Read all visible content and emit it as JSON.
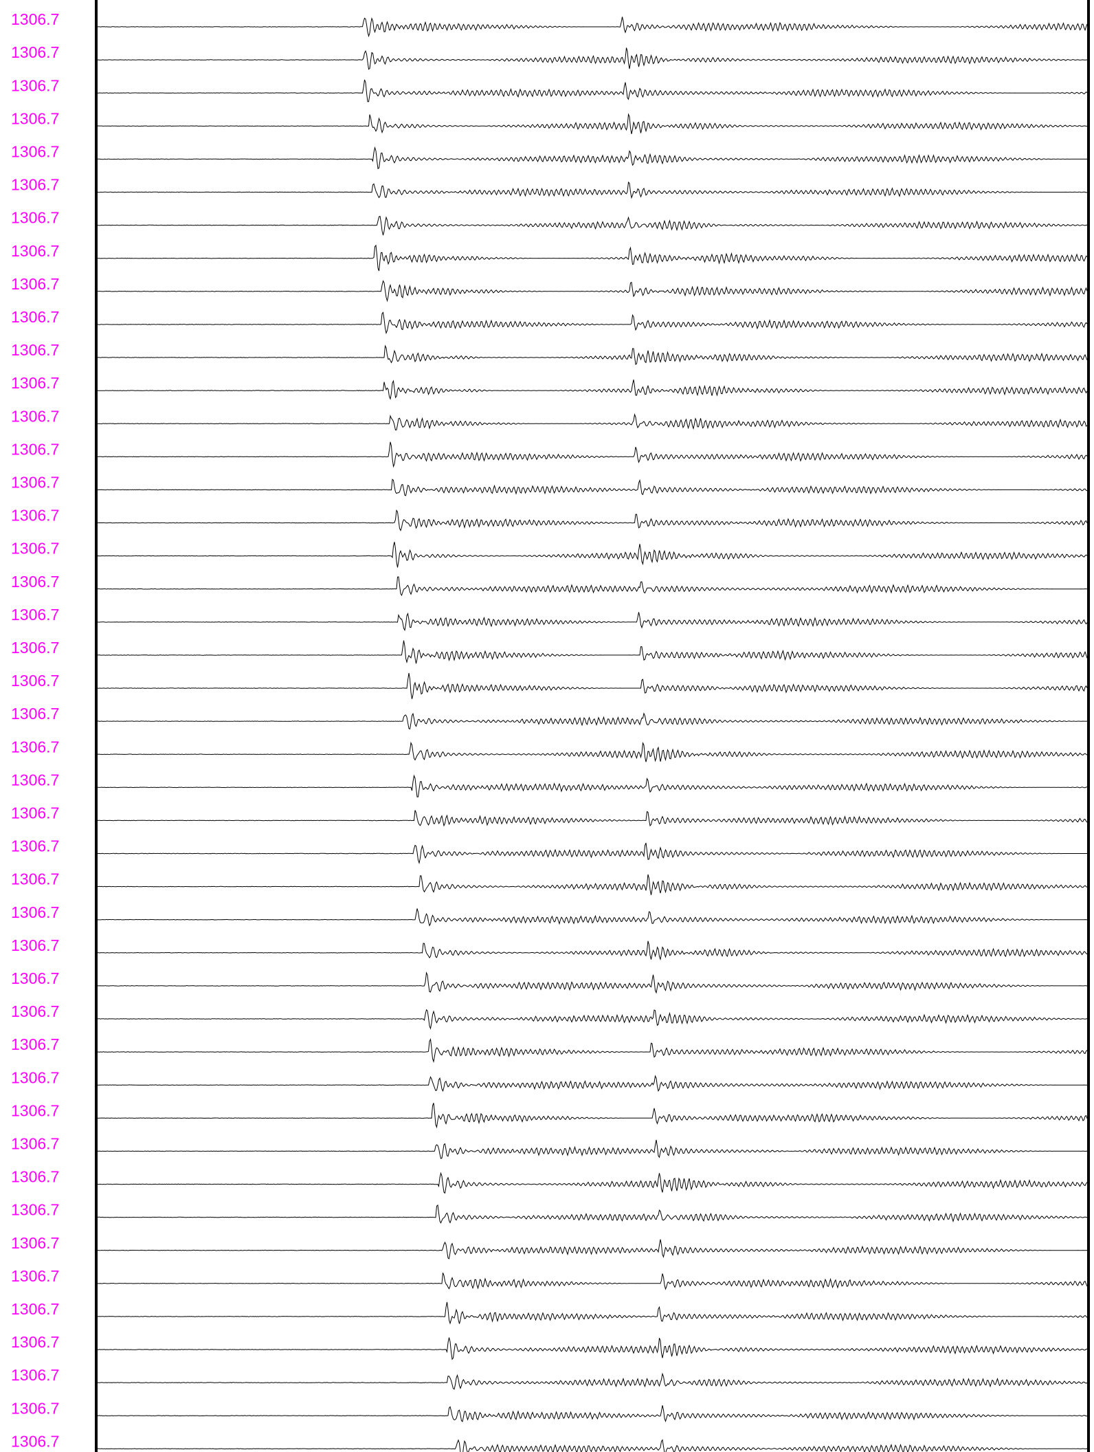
{
  "traces": [
    {
      "label": "1306.7"
    },
    {
      "label": "1306.7"
    },
    {
      "label": "1306.7"
    },
    {
      "label": "1306.7"
    },
    {
      "label": "1306.7"
    },
    {
      "label": "1306.7"
    },
    {
      "label": "1306.7"
    },
    {
      "label": "1306.7"
    },
    {
      "label": "1306.7"
    },
    {
      "label": "1306.7"
    },
    {
      "label": "1306.7"
    },
    {
      "label": "1306.7"
    },
    {
      "label": "1306.7"
    },
    {
      "label": "1306.7"
    },
    {
      "label": "1306.7"
    },
    {
      "label": "1306.7"
    },
    {
      "label": "1306.7"
    },
    {
      "label": "1306.7"
    },
    {
      "label": "1306.7"
    },
    {
      "label": "1306.7"
    },
    {
      "label": "1306.7"
    },
    {
      "label": "1306.7"
    },
    {
      "label": "1306.7"
    },
    {
      "label": "1306.7"
    },
    {
      "label": "1306.7"
    },
    {
      "label": "1306.7"
    },
    {
      "label": "1306.7"
    },
    {
      "label": "1306.7"
    },
    {
      "label": "1306.7"
    },
    {
      "label": "1306.7"
    },
    {
      "label": "1306.7"
    },
    {
      "label": "1306.7"
    },
    {
      "label": "1306.7"
    },
    {
      "label": "1306.7"
    },
    {
      "label": "1306.7"
    },
    {
      "label": "1306.7"
    },
    {
      "label": "1306.7"
    },
    {
      "label": "1306.7"
    },
    {
      "label": "1306.7"
    },
    {
      "label": "1306.7"
    },
    {
      "label": "1306.7"
    },
    {
      "label": "1306.7"
    },
    {
      "label": "1306.7"
    },
    {
      "label": "1306.7"
    }
  ]
}
